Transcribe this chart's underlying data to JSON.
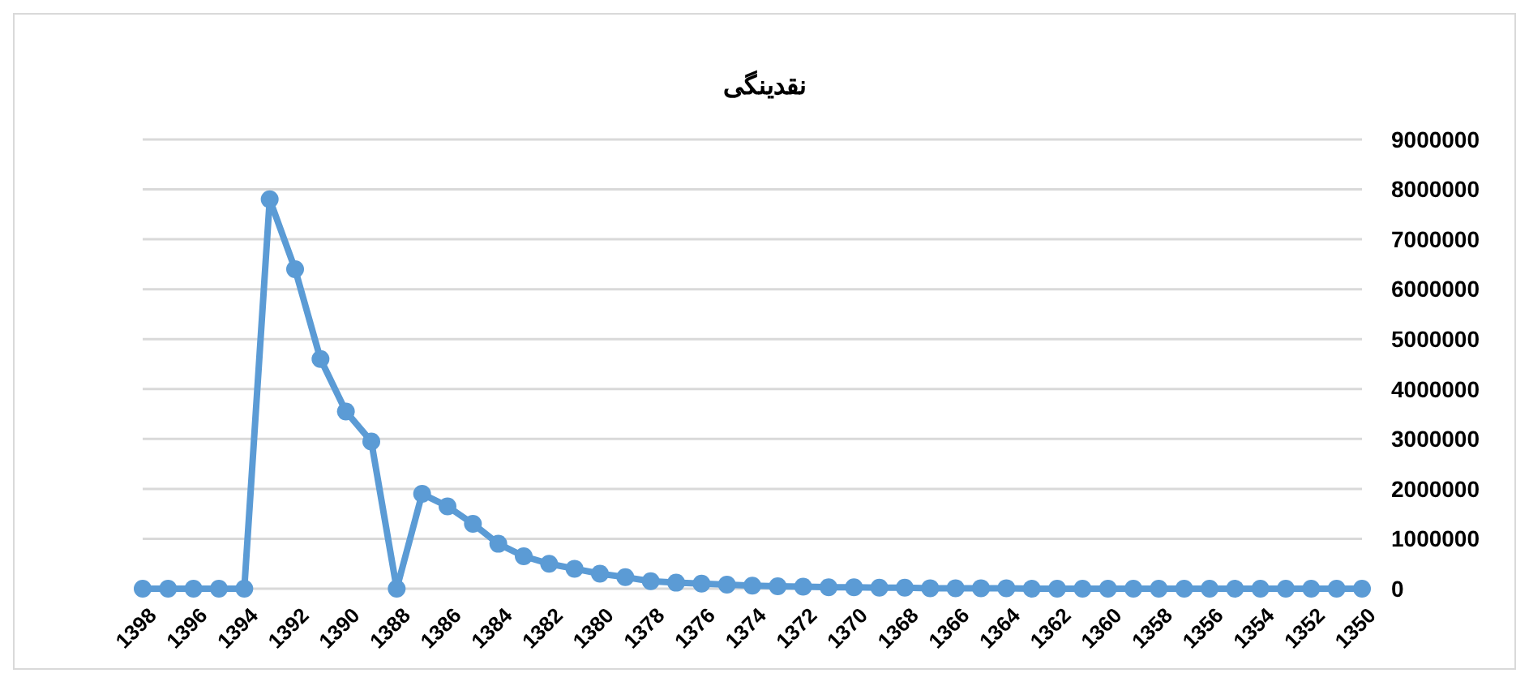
{
  "chart_data": {
    "type": "line",
    "title": "نقدینگی",
    "categories": [
      "1398",
      null,
      "1396",
      null,
      "1394",
      null,
      "1392",
      null,
      "1390",
      null,
      "1388",
      null,
      "1386",
      null,
      "1384",
      null,
      "1382",
      null,
      "1380",
      null,
      "1378",
      null,
      "1376",
      null,
      "1374",
      null,
      "1372",
      null,
      "1370",
      null,
      "1368",
      null,
      "1366",
      null,
      "1364",
      null,
      "1362",
      null,
      "1360",
      null,
      "1358",
      null,
      "1356",
      null,
      "1354",
      null,
      "1352",
      null,
      "1350"
    ],
    "series": [
      {
        "color": "#5b9bd5",
        "values": [
          0,
          0,
          0,
          0,
          0,
          7800000,
          6400000,
          4600000,
          3550000,
          2950000,
          0,
          1900000,
          1650000,
          1300000,
          900000,
          650000,
          500000,
          400000,
          300000,
          230000,
          150000,
          120000,
          100000,
          80000,
          60000,
          50000,
          40000,
          30000,
          30000,
          20000,
          20000,
          10000,
          10000,
          10000,
          10000,
          0,
          0,
          0,
          0,
          0,
          0,
          0,
          0,
          0,
          0,
          0,
          0,
          0,
          0
        ]
      }
    ],
    "ylim": [
      0,
      9000000
    ],
    "yticks": [
      0,
      1000000,
      2000000,
      3000000,
      4000000,
      5000000,
      6000000,
      7000000,
      8000000,
      9000000
    ],
    "grid": "y",
    "marker": "circle",
    "line_style": "solid"
  }
}
